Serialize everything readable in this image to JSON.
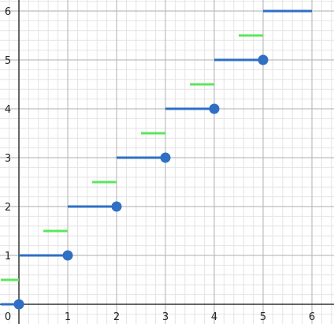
{
  "chart_data": {
    "type": "line",
    "title": "",
    "xlabel": "",
    "ylabel": "",
    "xlim": [
      -0.37,
      6.45
    ],
    "ylim": [
      -0.2,
      6.25
    ],
    "grid": true,
    "minor_grid_step": 0.2,
    "x_ticks": [
      "0",
      "1",
      "2",
      "3",
      "4",
      "5",
      "6"
    ],
    "y_ticks": [
      "0",
      "1",
      "2",
      "3",
      "4",
      "5",
      "6"
    ],
    "series": [
      {
        "style": "blue steps with filled dot at right end",
        "color": "#2f6fc4",
        "segments": [
          [
            -0.37,
            0,
            0,
            0
          ],
          [
            0,
            1,
            1,
            1
          ],
          [
            1,
            2,
            2,
            2
          ],
          [
            2,
            3,
            3,
            3
          ],
          [
            3,
            4,
            4,
            4
          ],
          [
            4,
            5,
            5,
            5
          ],
          [
            5,
            6,
            6,
            6
          ]
        ],
        "points": [
          [
            0,
            0
          ],
          [
            1,
            1
          ],
          [
            2,
            2
          ],
          [
            3,
            3
          ],
          [
            4,
            4
          ],
          [
            5,
            5
          ]
        ]
      },
      {
        "style": "green half-width steps",
        "color": "#5ce65c",
        "segments": [
          [
            -0.37,
            0.5,
            0,
            0.5
          ],
          [
            0,
            1,
            0.5,
            1
          ],
          [
            0.5,
            1.5,
            1,
            1.5
          ],
          [
            1,
            2,
            1.5,
            2
          ],
          [
            1.5,
            2.5,
            2,
            2.5
          ],
          [
            2,
            3,
            2.5,
            3
          ],
          [
            2.5,
            3.5,
            3,
            3.5
          ],
          [
            3,
            4,
            3.5,
            4
          ],
          [
            3.5,
            4.5,
            4,
            4.5
          ],
          [
            4,
            5,
            4.5,
            5
          ],
          [
            4.5,
            5.5,
            5,
            5.5
          ],
          [
            5,
            6,
            5.5,
            6
          ]
        ]
      }
    ]
  }
}
